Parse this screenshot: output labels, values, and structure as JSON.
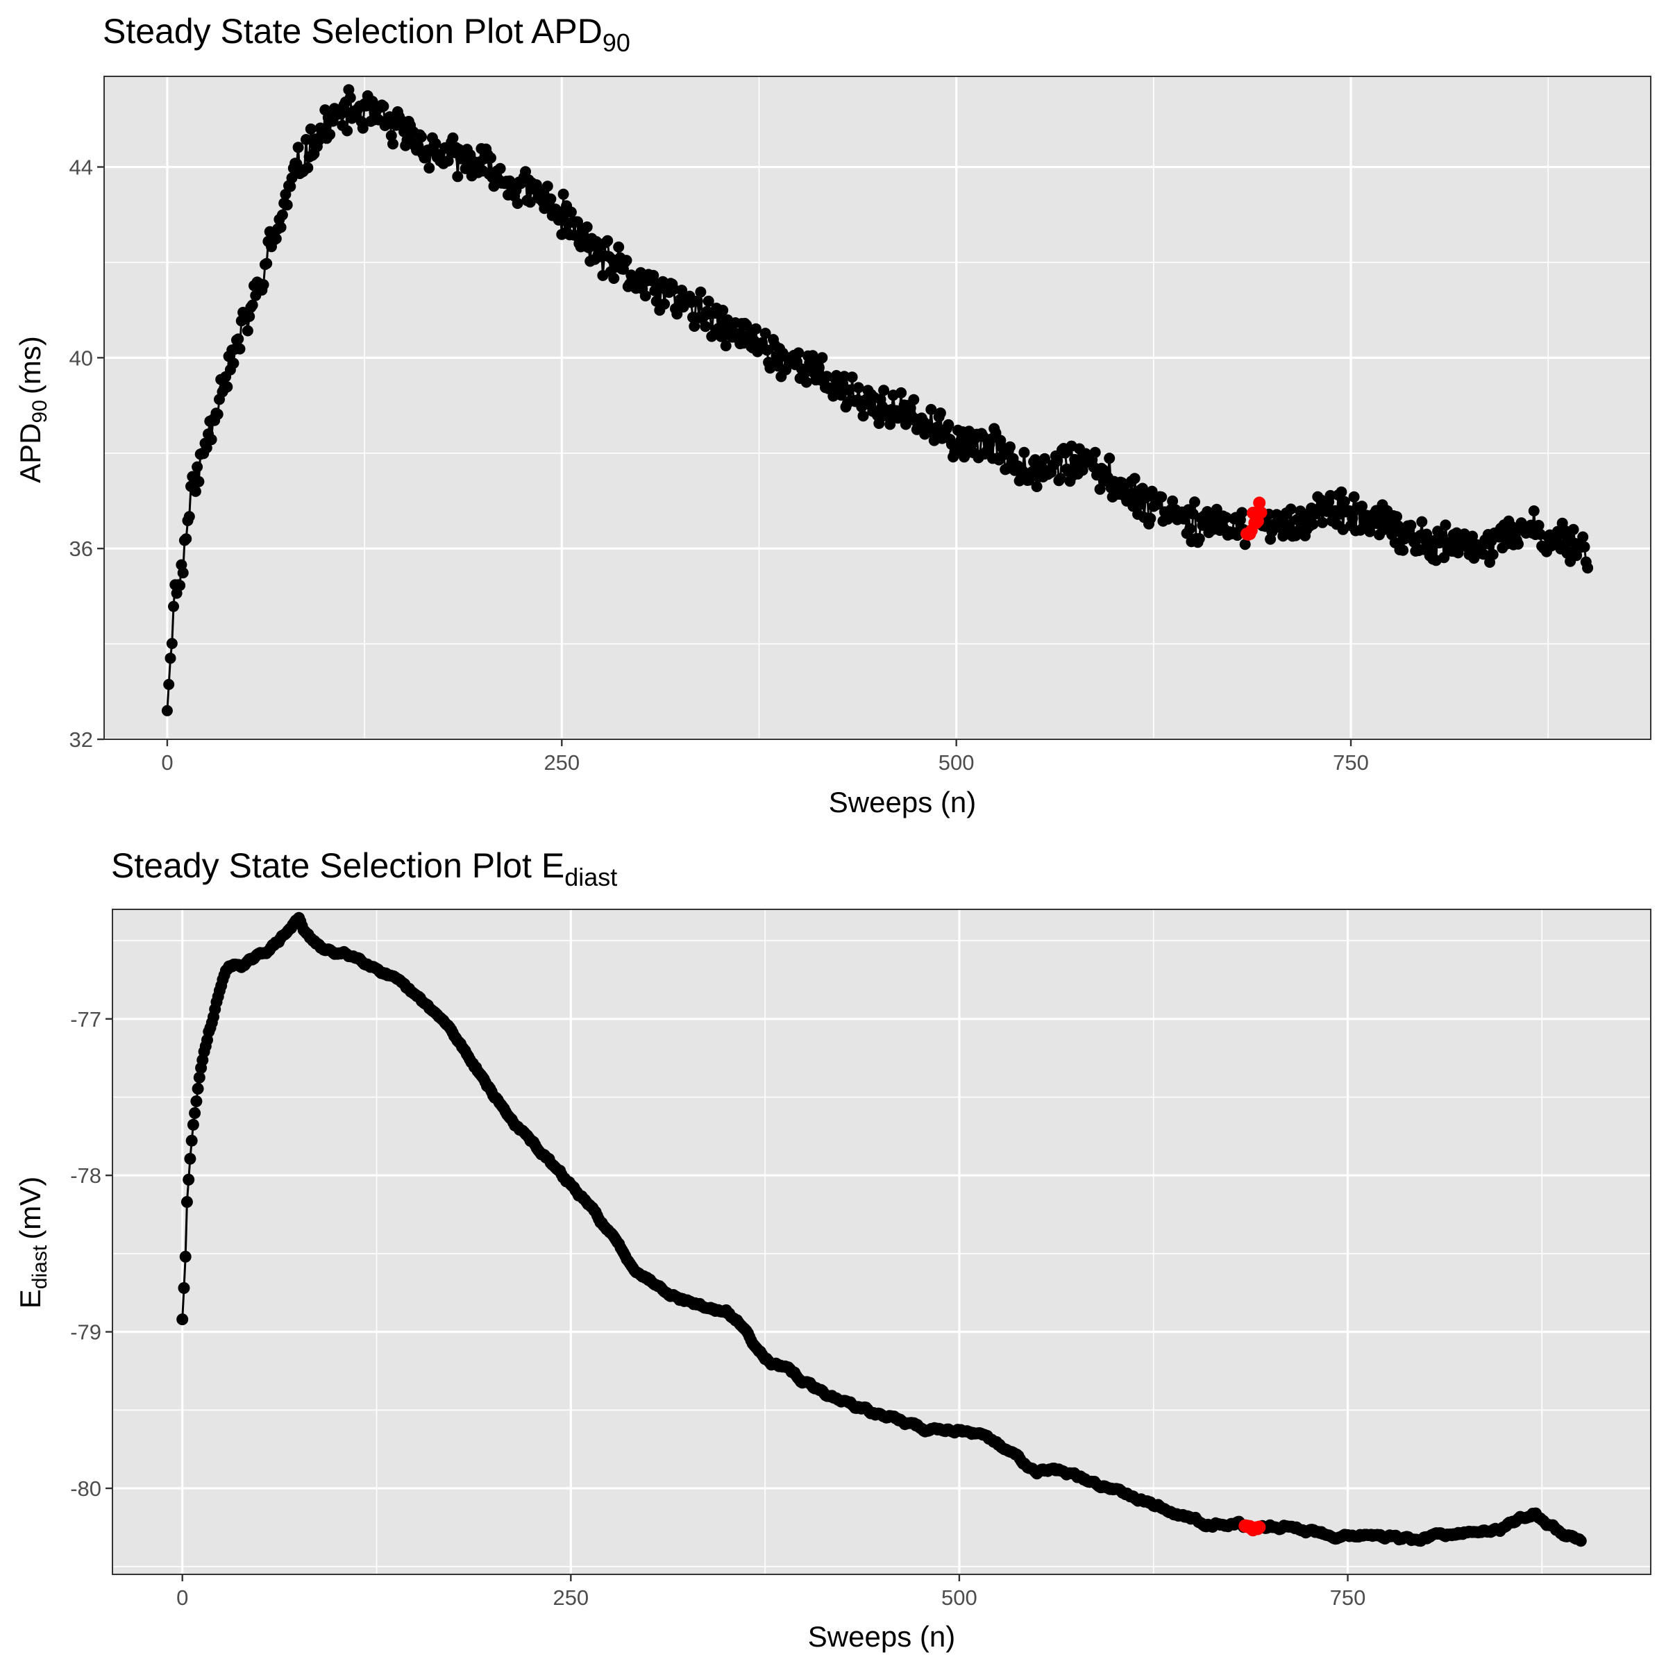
{
  "chart_data": [
    {
      "type": "scatter",
      "title": "Steady State Selection Plot APD",
      "title_subscript": "90",
      "xlabel": "Sweeps (n)",
      "ylabel": "APD",
      "ylabel_subscript": "90",
      "ylabel_unit": "(ms)",
      "xlim": [
        -40,
        940
      ],
      "ylim": [
        32,
        45.9
      ],
      "x_ticks": [
        0,
        250,
        500,
        750
      ],
      "x_tick_labels": [
        "0",
        "250",
        "500",
        "750"
      ],
      "y_ticks": [
        32,
        36,
        40,
        44
      ],
      "y_tick_labels": [
        "32",
        "36",
        "40",
        "44"
      ],
      "grid": true,
      "legend": "none",
      "line_color": "#000000",
      "point_color": "#000000",
      "selected_color": "#ff0000",
      "selected_range": [
        684,
        693
      ],
      "series": [
        {
          "anchors": [
            [
              0,
              32.6
            ],
            [
              2,
              33.7
            ],
            [
              4,
              35
            ],
            [
              8,
              35.3
            ],
            [
              12,
              36.3
            ],
            [
              16,
              37.3
            ],
            [
              20,
              37.6
            ],
            [
              25,
              38.3
            ],
            [
              30,
              38.9
            ],
            [
              35,
              39.5
            ],
            [
              40,
              39.9
            ],
            [
              45,
              40.3
            ],
            [
              50,
              40.8
            ],
            [
              55,
              41.2
            ],
            [
              60,
              41.6
            ],
            [
              65,
              42.3
            ],
            [
              70,
              42.7
            ],
            [
              75,
              43.2
            ],
            [
              80,
              43.8
            ],
            [
              90,
              44.4
            ],
            [
              100,
              44.8
            ],
            [
              110,
              45.1
            ],
            [
              120,
              45.2
            ],
            [
              130,
              45.1
            ],
            [
              140,
              44.9
            ],
            [
              150,
              44.7
            ],
            [
              160,
              44.5
            ],
            [
              170,
              44.3
            ],
            [
              180,
              44.2
            ],
            [
              190,
              44.1
            ],
            [
              200,
              44.0
            ],
            [
              210,
              43.8
            ],
            [
              220,
              43.6
            ],
            [
              230,
              43.5
            ],
            [
              240,
              43.3
            ],
            [
              250,
              43.0
            ],
            [
              260,
              42.6
            ],
            [
              270,
              42.3
            ],
            [
              280,
              42.0
            ],
            [
              290,
              41.8
            ],
            [
              300,
              41.6
            ],
            [
              310,
              41.4
            ],
            [
              320,
              41.3
            ],
            [
              330,
              41.1
            ],
            [
              340,
              40.9
            ],
            [
              350,
              40.7
            ],
            [
              360,
              40.5
            ],
            [
              370,
              40.4
            ],
            [
              380,
              40.2
            ],
            [
              390,
              40.0
            ],
            [
              400,
              39.9
            ],
            [
              410,
              39.7
            ],
            [
              420,
              39.5
            ],
            [
              430,
              39.3
            ],
            [
              440,
              39.1
            ],
            [
              450,
              39.0
            ],
            [
              460,
              38.9
            ],
            [
              470,
              38.8
            ],
            [
              480,
              38.6
            ],
            [
              490,
              38.4
            ],
            [
              500,
              38.3
            ],
            [
              510,
              38.2
            ],
            [
              520,
              38.1
            ],
            [
              530,
              38.0
            ],
            [
              540,
              37.8
            ],
            [
              550,
              37.7
            ],
            [
              560,
              37.7
            ],
            [
              570,
              37.8
            ],
            [
              580,
              37.8
            ],
            [
              590,
              37.6
            ],
            [
              600,
              37.4
            ],
            [
              610,
              37.2
            ],
            [
              620,
              37.0
            ],
            [
              630,
              36.9
            ],
            [
              640,
              36.8
            ],
            [
              650,
              36.6
            ],
            [
              660,
              36.5
            ],
            [
              670,
              36.4
            ],
            [
              680,
              36.4
            ],
            [
              686,
              36.6
            ],
            [
              692,
              36.6
            ],
            [
              700,
              36.5
            ],
            [
              710,
              36.5
            ],
            [
              720,
              36.6
            ],
            [
              730,
              36.8
            ],
            [
              740,
              36.7
            ],
            [
              750,
              36.7
            ],
            [
              760,
              36.6
            ],
            [
              770,
              36.5
            ],
            [
              780,
              36.3
            ],
            [
              790,
              36.2
            ],
            [
              800,
              36.1
            ],
            [
              810,
              36.1
            ],
            [
              820,
              36.0
            ],
            [
              830,
              36.0
            ],
            [
              840,
              36.1
            ],
            [
              850,
              36.2
            ],
            [
              860,
              36.4
            ],
            [
              870,
              36.3
            ],
            [
              880,
              36.2
            ],
            [
              890,
              36.1
            ],
            [
              900,
              36.0
            ]
          ],
          "n_points": 901,
          "noise_amplitude": 0.35
        }
      ]
    },
    {
      "type": "scatter",
      "title": "Steady State Selection Plot E",
      "title_subscript": "diast",
      "xlabel": "Sweeps (n)",
      "ylabel": "E",
      "ylabel_subscript": "diast",
      "ylabel_unit": "(mV)",
      "xlim": [
        -45,
        945
      ],
      "ylim": [
        -80.55,
        -76.3
      ],
      "x_ticks": [
        0,
        250,
        500,
        750
      ],
      "x_tick_labels": [
        "0",
        "250",
        "500",
        "750"
      ],
      "y_ticks": [
        -80,
        -79,
        -78,
        -77
      ],
      "y_tick_labels": [
        "-80",
        "-79",
        "-78",
        "-77"
      ],
      "grid": true,
      "legend": "none",
      "line_color": "#000000",
      "point_color": "#000000",
      "selected_color": "#ff0000",
      "selected_range": [
        684,
        693
      ],
      "series": [
        {
          "anchors": [
            [
              0,
              -78.92
            ],
            [
              2,
              -78.52
            ],
            [
              3,
              -78.18
            ],
            [
              5,
              -77.9
            ],
            [
              7,
              -77.68
            ],
            [
              9,
              -77.52
            ],
            [
              11,
              -77.38
            ],
            [
              14,
              -77.22
            ],
            [
              17,
              -77.08
            ],
            [
              20,
              -76.98
            ],
            [
              23,
              -76.86
            ],
            [
              26,
              -76.74
            ],
            [
              30,
              -76.66
            ],
            [
              40,
              -76.65
            ],
            [
              50,
              -76.6
            ],
            [
              60,
              -76.52
            ],
            [
              70,
              -76.42
            ],
            [
              75,
              -76.35
            ],
            [
              80,
              -76.46
            ],
            [
              90,
              -76.56
            ],
            [
              100,
              -76.58
            ],
            [
              110,
              -76.6
            ],
            [
              120,
              -76.64
            ],
            [
              130,
              -76.7
            ],
            [
              140,
              -76.78
            ],
            [
              150,
              -76.86
            ],
            [
              160,
              -76.94
            ],
            [
              170,
              -77.04
            ],
            [
              180,
              -77.18
            ],
            [
              190,
              -77.32
            ],
            [
              200,
              -77.48
            ],
            [
              210,
              -77.62
            ],
            [
              220,
              -77.74
            ],
            [
              230,
              -77.84
            ],
            [
              240,
              -77.96
            ],
            [
              250,
              -78.06
            ],
            [
              260,
              -78.18
            ],
            [
              270,
              -78.3
            ],
            [
              280,
              -78.44
            ],
            [
              290,
              -78.58
            ],
            [
              300,
              -78.66
            ],
            [
              310,
              -78.72
            ],
            [
              320,
              -78.78
            ],
            [
              330,
              -78.82
            ],
            [
              340,
              -78.85
            ],
            [
              350,
              -78.88
            ],
            [
              360,
              -78.96
            ],
            [
              370,
              -79.1
            ],
            [
              380,
              -79.2
            ],
            [
              390,
              -79.25
            ],
            [
              400,
              -79.32
            ],
            [
              410,
              -79.38
            ],
            [
              420,
              -79.42
            ],
            [
              430,
              -79.46
            ],
            [
              440,
              -79.5
            ],
            [
              450,
              -79.54
            ],
            [
              460,
              -79.55
            ],
            [
              470,
              -79.6
            ],
            [
              480,
              -79.63
            ],
            [
              490,
              -79.62
            ],
            [
              500,
              -79.62
            ],
            [
              510,
              -79.66
            ],
            [
              520,
              -79.7
            ],
            [
              530,
              -79.75
            ],
            [
              540,
              -79.82
            ],
            [
              550,
              -79.88
            ],
            [
              560,
              -79.88
            ],
            [
              570,
              -79.9
            ],
            [
              580,
              -79.95
            ],
            [
              590,
              -79.98
            ],
            [
              600,
              -80.0
            ],
            [
              610,
              -80.03
            ],
            [
              620,
              -80.08
            ],
            [
              630,
              -80.12
            ],
            [
              640,
              -80.16
            ],
            [
              650,
              -80.2
            ],
            [
              660,
              -80.22
            ],
            [
              670,
              -80.22
            ],
            [
              680,
              -80.23
            ],
            [
              690,
              -80.26
            ],
            [
              700,
              -80.25
            ],
            [
              710,
              -80.24
            ],
            [
              720,
              -80.26
            ],
            [
              730,
              -80.28
            ],
            [
              740,
              -80.3
            ],
            [
              750,
              -80.3
            ],
            [
              760,
              -80.29
            ],
            [
              770,
              -80.31
            ],
            [
              780,
              -80.32
            ],
            [
              790,
              -80.33
            ],
            [
              800,
              -80.32
            ],
            [
              810,
              -80.3
            ],
            [
              820,
              -80.3
            ],
            [
              830,
              -80.28
            ],
            [
              840,
              -80.27
            ],
            [
              850,
              -80.25
            ],
            [
              860,
              -80.2
            ],
            [
              870,
              -80.15
            ],
            [
              880,
              -80.24
            ],
            [
              890,
              -80.3
            ],
            [
              900,
              -80.32
            ]
          ],
          "n_points": 901,
          "noise_amplitude": 0.02
        }
      ]
    }
  ]
}
